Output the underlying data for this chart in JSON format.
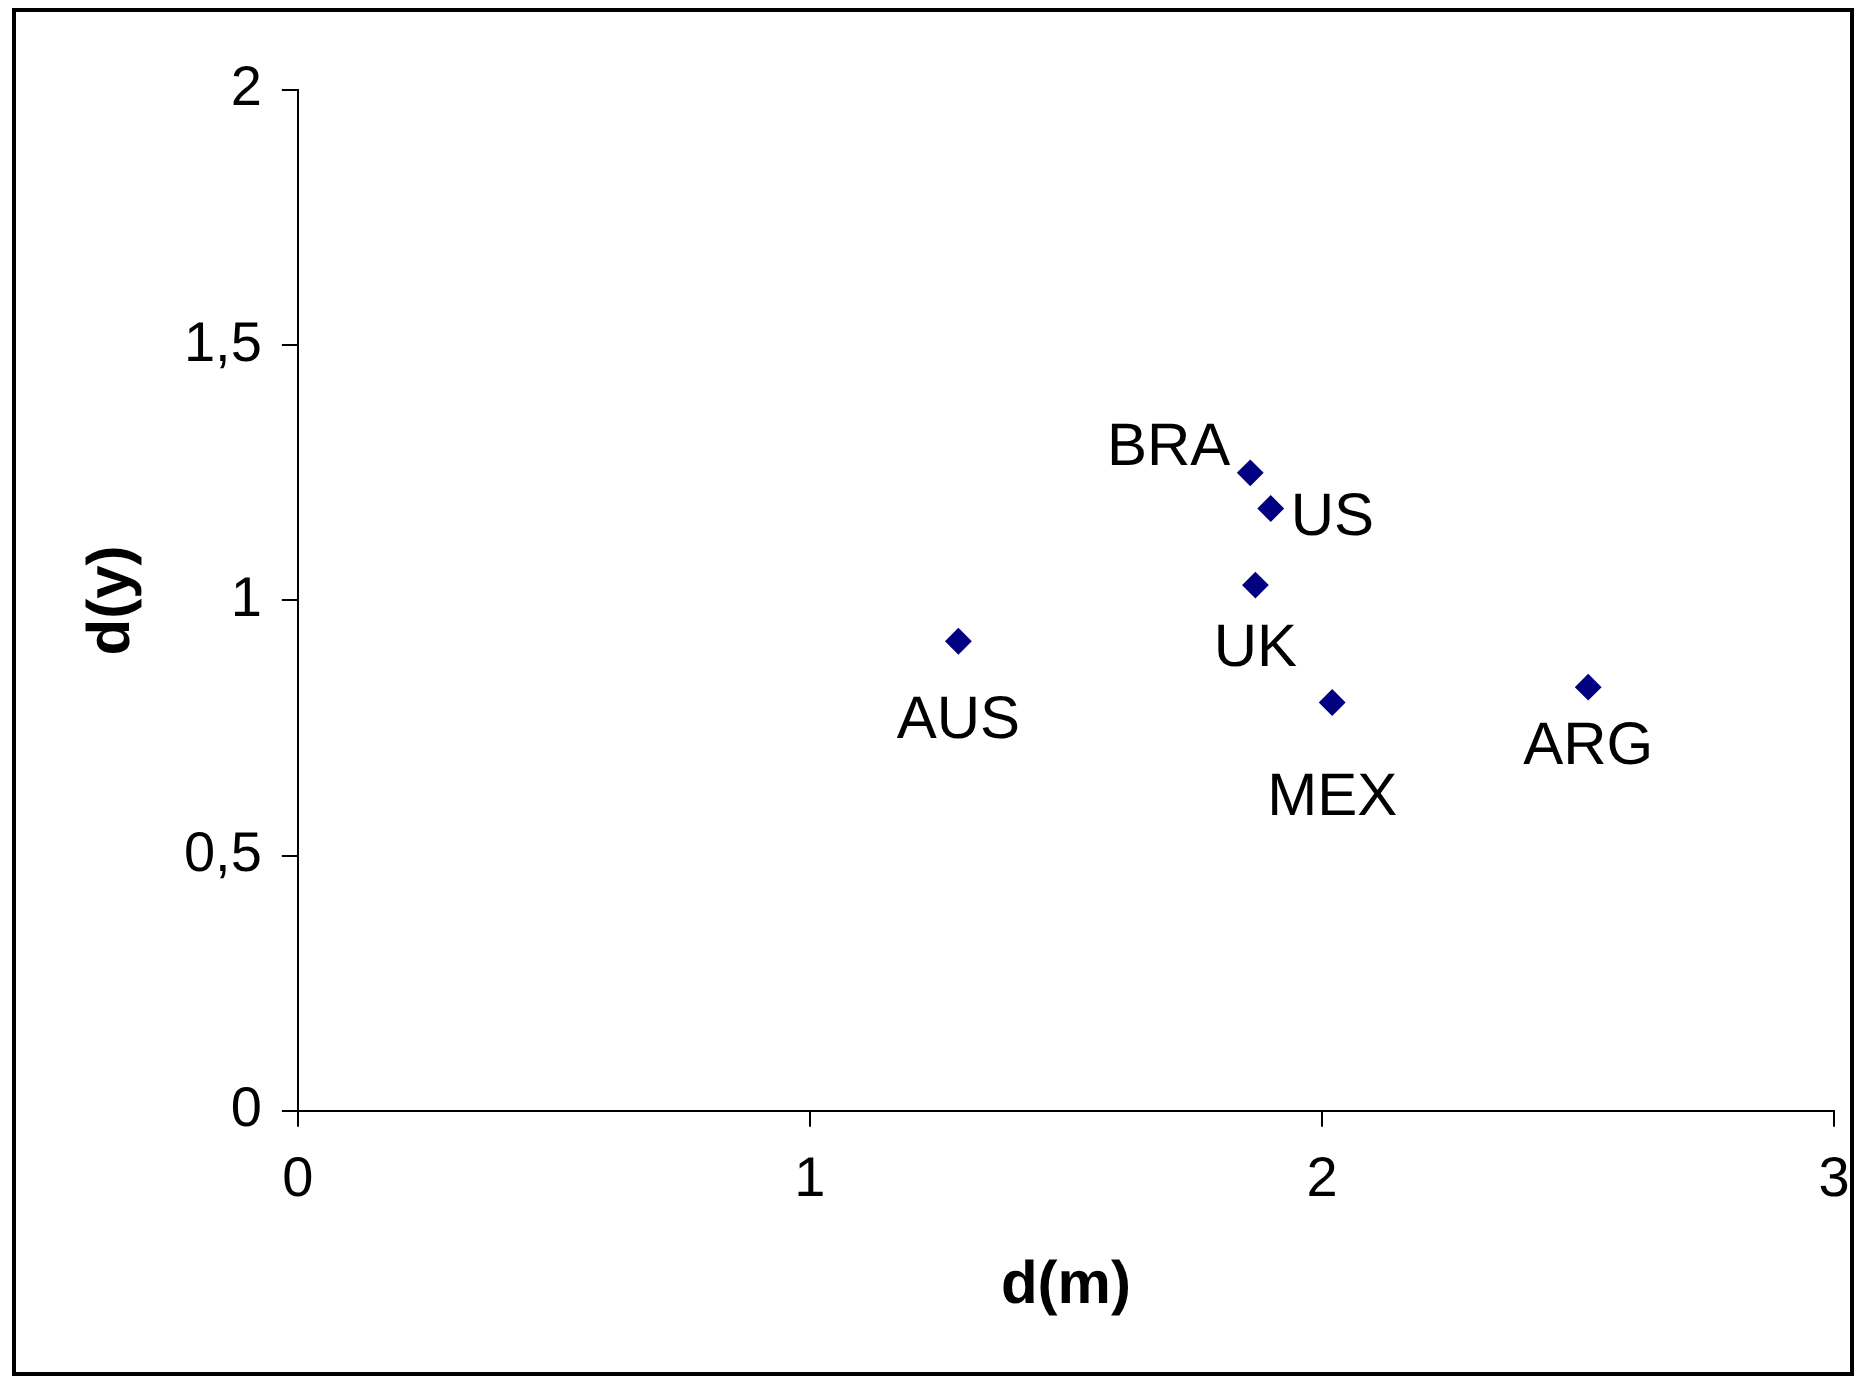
{
  "chart_data": {
    "type": "scatter",
    "xlabel": "d(m)",
    "ylabel": "d(y)",
    "x": [
      1.29,
      1.86,
      1.9,
      1.87,
      2.02,
      2.52
    ],
    "series": [
      {
        "color": "#000080",
        "values": [
          0.92,
          1.25,
          1.18,
          1.03,
          0.8,
          0.83
        ]
      }
    ],
    "annotations": [
      {
        "text": "AUS",
        "x": 1.29,
        "y": 0.92
      },
      {
        "text": "BRA",
        "x": 1.86,
        "y": 1.25
      },
      {
        "text": "US",
        "x": 1.9,
        "y": 1.18
      },
      {
        "text": "UK",
        "x": 1.87,
        "y": 1.03
      },
      {
        "text": "MEX",
        "x": 2.02,
        "y": 0.8
      },
      {
        "text": "ARG",
        "x": 2.52,
        "y": 0.83
      }
    ],
    "xlim": [
      0,
      3
    ],
    "xticks": [
      0,
      1,
      2,
      3
    ],
    "ylim": [
      0,
      2
    ],
    "yticks": [
      0,
      {
        "value": 0.5,
        "label": "0,5"
      },
      1,
      {
        "value": 1.5,
        "label": "1,5"
      },
      2
    ],
    "grid": false,
    "legend": false,
    "marker": "diamond"
  }
}
